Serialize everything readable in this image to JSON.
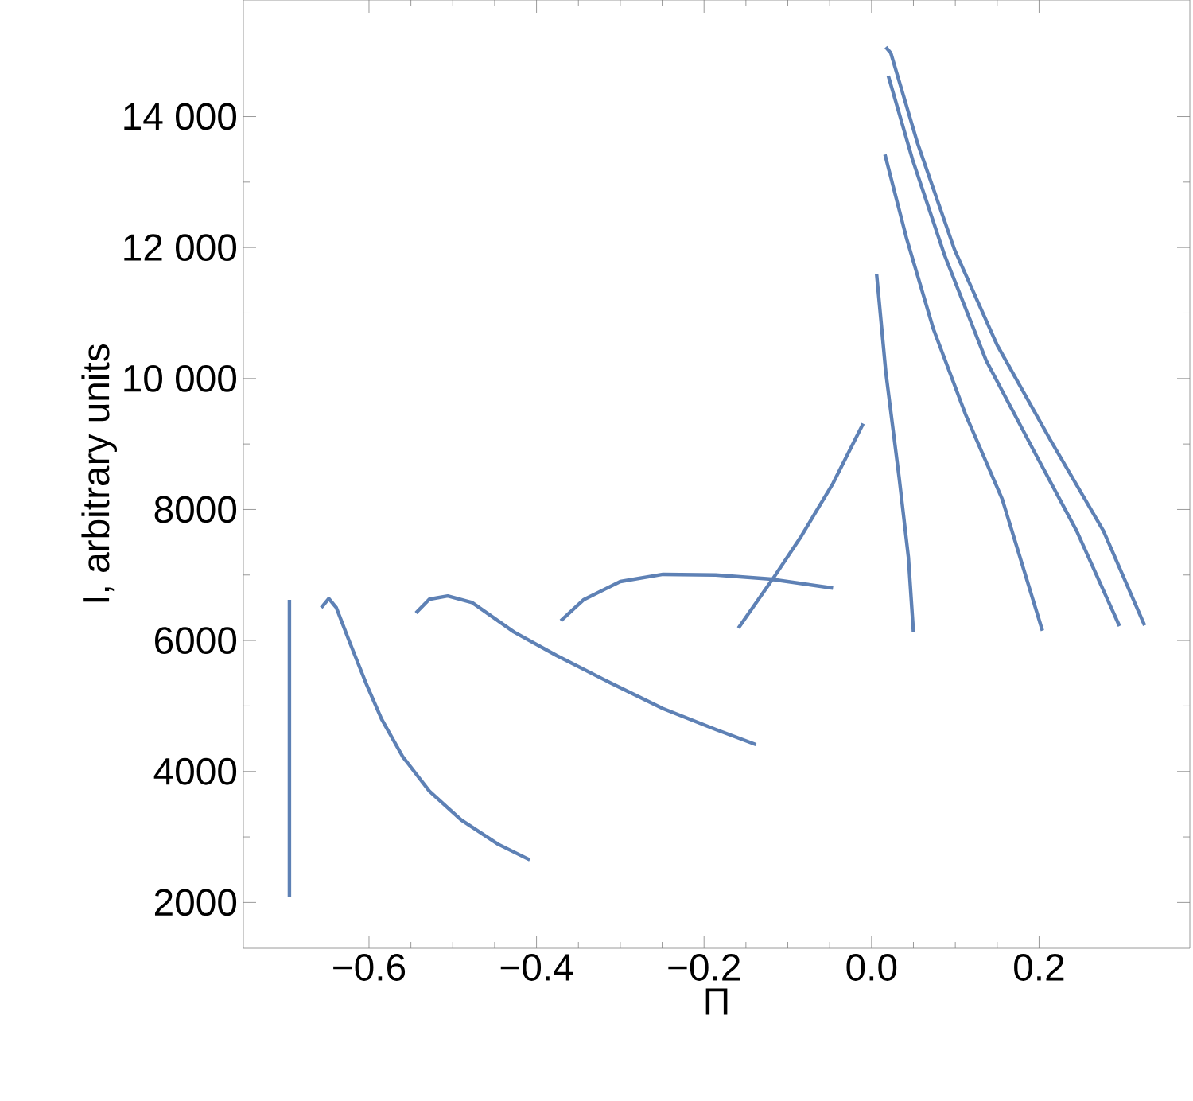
{
  "chart_data": {
    "type": "line",
    "xlabel": "Π",
    "ylabel": "I, arbitrary units",
    "xlim": [
      -0.75,
      0.38
    ],
    "ylim": [
      1300,
      15780
    ],
    "xticks": [
      {
        "value": -0.6,
        "label": "−0.6"
      },
      {
        "value": -0.4,
        "label": "−0.4"
      },
      {
        "value": -0.2,
        "label": "−0.2"
      },
      {
        "value": 0,
        "label": "0.0"
      },
      {
        "value": 0.2,
        "label": "0.2"
      }
    ],
    "yticks": [
      2000,
      4000,
      6000,
      8000,
      {
        "value": 10000,
        "label": "10 000"
      },
      {
        "value": 12000,
        "label": "12 000"
      },
      {
        "value": 14000,
        "label": "14 000"
      }
    ],
    "grid": false,
    "marker": "none",
    "line_style": "solid",
    "series": [
      {
        "color": "#5e81b5",
        "x": [
          -0.695,
          -0.695
        ],
        "values": [
          2080,
          6620
        ]
      },
      {
        "color": "#5e81b5",
        "x": [
          -0.657,
          -0.648,
          -0.639,
          -0.623,
          -0.604,
          -0.585,
          -0.56,
          -0.528,
          -0.49,
          -0.446,
          -0.408
        ],
        "values": [
          6500,
          6640,
          6500,
          5970,
          5360,
          4800,
          4230,
          3700,
          3260,
          2890,
          2650
        ]
      },
      {
        "color": "#5e81b5",
        "x": [
          -0.544,
          -0.528,
          -0.506,
          -0.477,
          -0.427,
          -0.376,
          -0.313,
          -0.249,
          -0.186,
          -0.138
        ],
        "values": [
          6420,
          6630,
          6680,
          6580,
          6130,
          5770,
          5360,
          4960,
          4640,
          4410
        ]
      },
      {
        "color": "#5e81b5",
        "x": [
          -0.371,
          -0.344,
          -0.3,
          -0.249,
          -0.186,
          -0.122,
          -0.046
        ],
        "values": [
          6300,
          6620,
          6900,
          7010,
          7000,
          6940,
          6800
        ]
      },
      {
        "color": "#5e81b5",
        "x": [
          -0.159,
          -0.119,
          -0.084,
          -0.046,
          -0.01
        ],
        "values": [
          6190,
          6920,
          7590,
          8400,
          9310
        ]
      },
      {
        "color": "#5e81b5",
        "x": [
          0.006,
          0.017,
          0.033,
          0.044,
          0.05
        ],
        "values": [
          11600,
          10100,
          8480,
          7270,
          6130
        ]
      },
      {
        "color": "#5e81b5",
        "x": [
          0.016,
          0.042,
          0.074,
          0.112,
          0.156,
          0.204
        ],
        "values": [
          13420,
          12130,
          10750,
          9460,
          8160,
          6150
        ]
      },
      {
        "color": "#5e81b5",
        "x": [
          0.02,
          0.049,
          0.087,
          0.137,
          0.194,
          0.245,
          0.296
        ],
        "values": [
          14620,
          13340,
          11890,
          10270,
          8890,
          7670,
          6220
        ]
      },
      {
        "color": "#5e81b5",
        "x": [
          0.017,
          0.023,
          0.055,
          0.099,
          0.15,
          0.214,
          0.277,
          0.326
        ],
        "values": [
          15060,
          14970,
          13590,
          11970,
          10510,
          9050,
          7670,
          6230
        ]
      }
    ]
  }
}
